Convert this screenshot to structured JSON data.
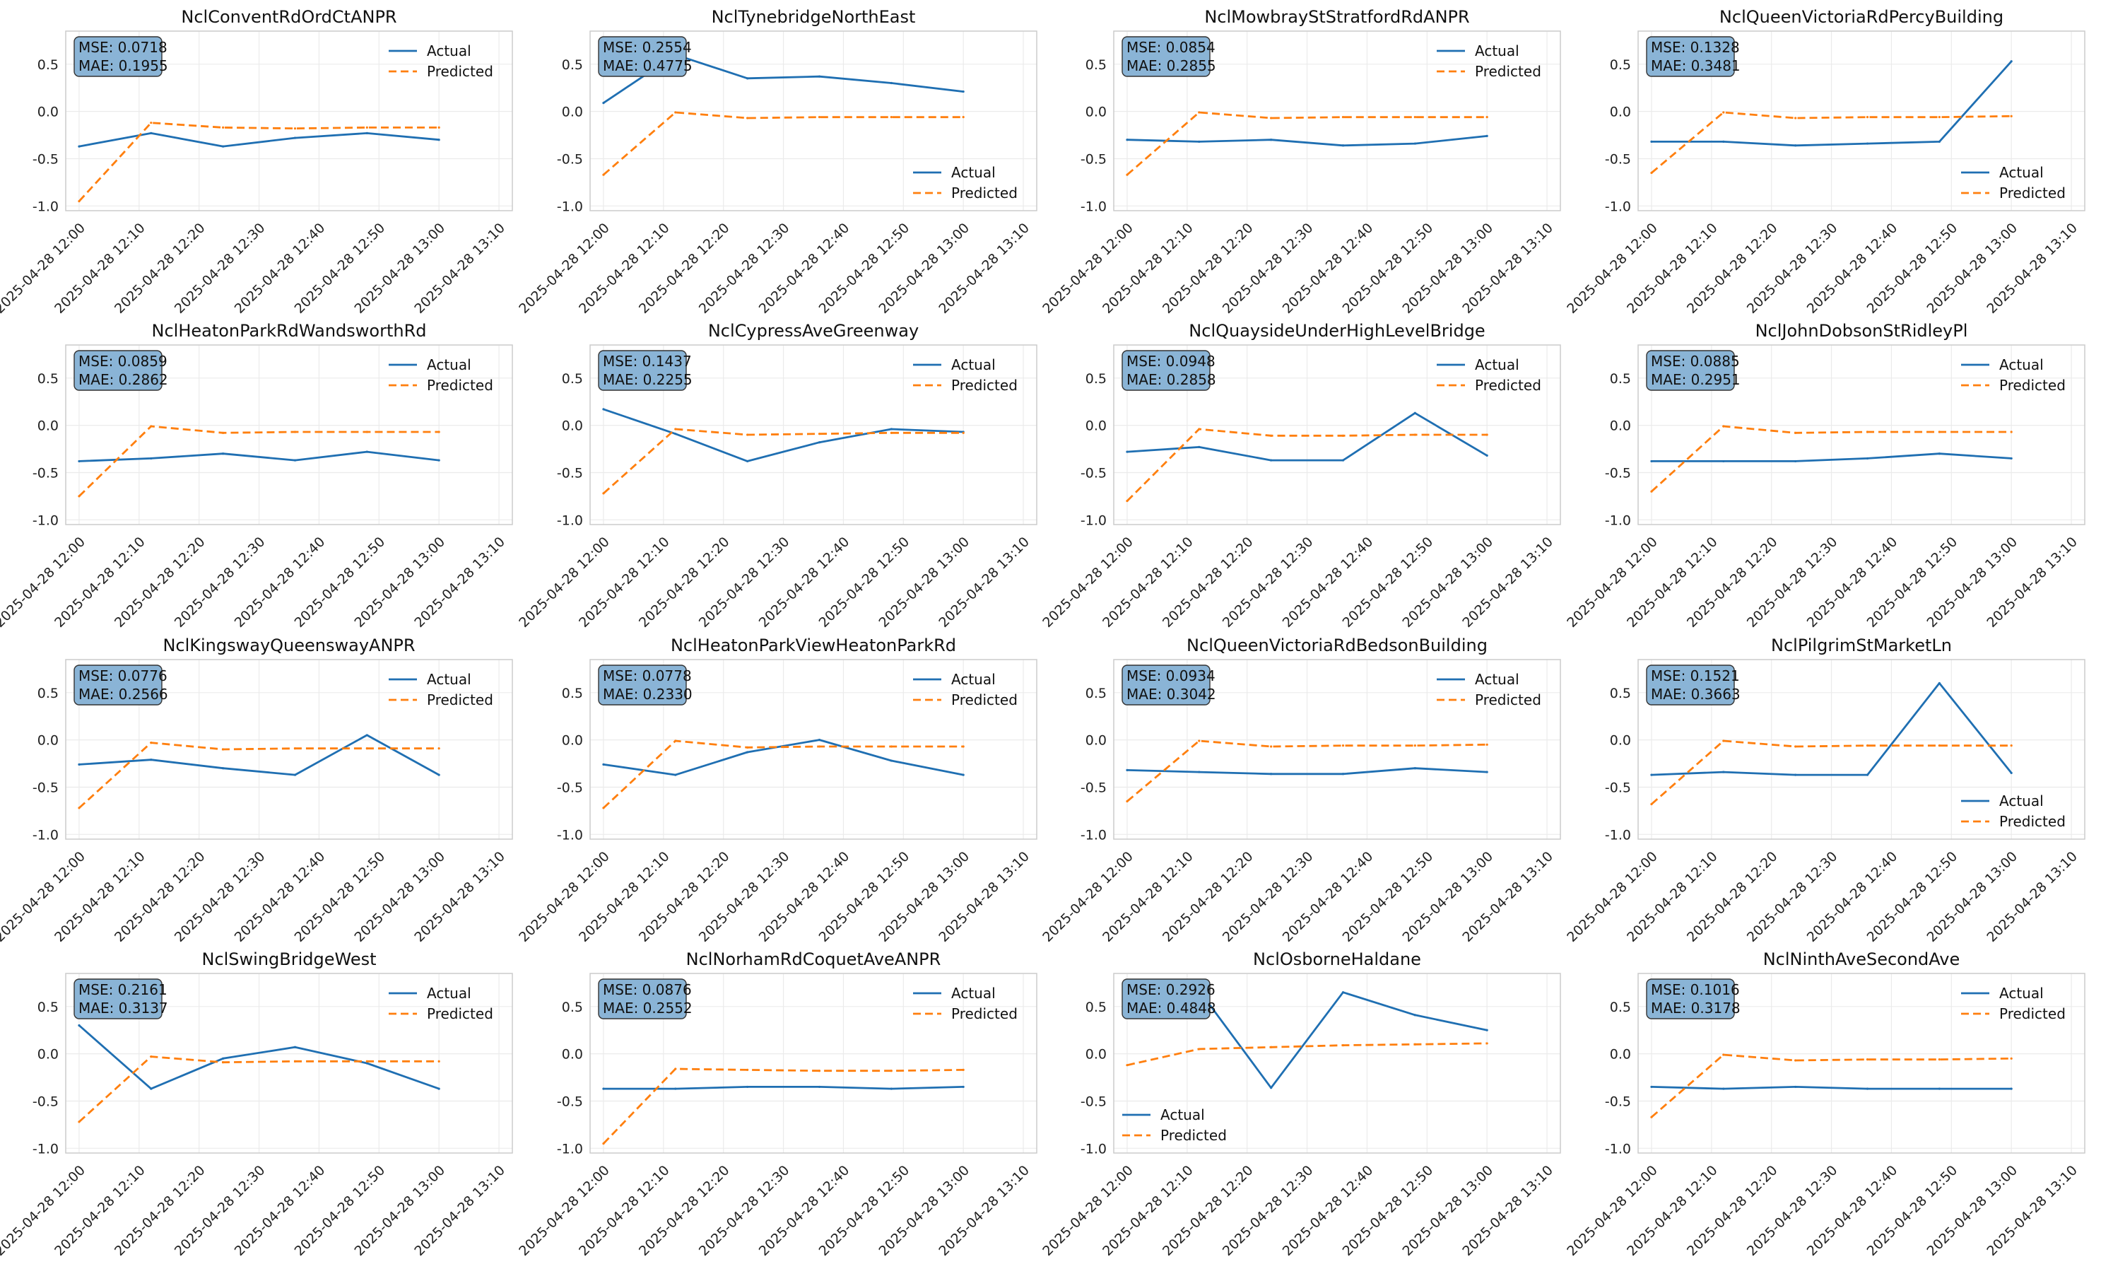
{
  "legend_labels": {
    "actual": "Actual",
    "predicted": "Predicted"
  },
  "colors": {
    "actual": "#1f6fb2",
    "predicted": "#ff7f0e",
    "metric_box": "#8ab4d6",
    "grid": "#ebebeb",
    "frame": "#cccccc"
  },
  "chart_data": [
    {
      "type": "line",
      "title": "NclConventRdOrdCtANPR",
      "mse": "MSE: 0.0718",
      "mae": "MAE: 0.1955",
      "legend": "top-right",
      "x": [
        "2025-04-28 12:00",
        "2025-04-28 12:10",
        "2025-04-28 12:20",
        "2025-04-28 12:30",
        "2025-04-28 12:40",
        "2025-04-28 12:50",
        "2025-04-28 13:00",
        "2025-04-28 13:10"
      ],
      "ylim": [
        -1.05,
        0.85
      ],
      "yticks": [
        "0.5",
        "0.0",
        "-0.5",
        "-1.0"
      ],
      "series": [
        {
          "name": "Actual",
          "x": [
            0,
            1.2,
            2.4,
            3.6,
            4.8,
            6.0
          ],
          "values": [
            -0.37,
            -0.23,
            -0.37,
            -0.28,
            -0.23,
            -0.3
          ]
        },
        {
          "name": "Predicted",
          "x": [
            0,
            1.2,
            2.4,
            3.6,
            4.8,
            6.0
          ],
          "values": [
            -0.95,
            -0.12,
            -0.17,
            -0.18,
            -0.17,
            -0.17
          ]
        }
      ]
    },
    {
      "type": "line",
      "title": "NclTynebridgeNorthEast",
      "mse": "MSE: 0.2554",
      "mae": "MAE: 0.4775",
      "legend": "bottom-right",
      "x": [
        "2025-04-28 12:00",
        "2025-04-28 12:10",
        "2025-04-28 12:20",
        "2025-04-28 12:30",
        "2025-04-28 12:40",
        "2025-04-28 12:50",
        "2025-04-28 13:00",
        "2025-04-28 13:10"
      ],
      "ylim": [
        -1.05,
        0.85
      ],
      "yticks": [
        "0.5",
        "0.0",
        "-0.5",
        "-1.0"
      ],
      "series": [
        {
          "name": "Actual",
          "x": [
            0,
            1.2,
            2.4,
            3.6,
            4.8,
            6.0
          ],
          "values": [
            0.09,
            0.6,
            0.35,
            0.37,
            0.3,
            0.21
          ]
        },
        {
          "name": "Predicted",
          "x": [
            0,
            1.2,
            2.4,
            3.6,
            4.8,
            6.0
          ],
          "values": [
            -0.67,
            -0.01,
            -0.07,
            -0.06,
            -0.06,
            -0.06
          ]
        }
      ]
    },
    {
      "type": "line",
      "title": "NclMowbrayStStratfordRdANPR",
      "mse": "MSE: 0.0854",
      "mae": "MAE: 0.2855",
      "legend": "top-right",
      "x": [
        "2025-04-28 12:00",
        "2025-04-28 12:10",
        "2025-04-28 12:20",
        "2025-04-28 12:30",
        "2025-04-28 12:40",
        "2025-04-28 12:50",
        "2025-04-28 13:00",
        "2025-04-28 13:10"
      ],
      "ylim": [
        -1.05,
        0.85
      ],
      "yticks": [
        "0.5",
        "0.0",
        "-0.5",
        "-1.0"
      ],
      "series": [
        {
          "name": "Actual",
          "x": [
            0,
            1.2,
            2.4,
            3.6,
            4.8,
            6.0
          ],
          "values": [
            -0.3,
            -0.32,
            -0.3,
            -0.36,
            -0.34,
            -0.26
          ]
        },
        {
          "name": "Predicted",
          "x": [
            0,
            1.2,
            2.4,
            3.6,
            4.8,
            6.0
          ],
          "values": [
            -0.67,
            -0.01,
            -0.07,
            -0.06,
            -0.06,
            -0.06
          ]
        }
      ]
    },
    {
      "type": "line",
      "title": "NclQueenVictoriaRdPercyBuilding",
      "mse": "MSE: 0.1328",
      "mae": "MAE: 0.3481",
      "legend": "bottom-right",
      "x": [
        "2025-04-28 12:00",
        "2025-04-28 12:10",
        "2025-04-28 12:20",
        "2025-04-28 12:30",
        "2025-04-28 12:40",
        "2025-04-28 12:50",
        "2025-04-28 13:00",
        "2025-04-28 13:10"
      ],
      "ylim": [
        -1.05,
        0.85
      ],
      "yticks": [
        "0.5",
        "0.0",
        "-0.5",
        "-1.0"
      ],
      "series": [
        {
          "name": "Actual",
          "x": [
            0,
            1.2,
            2.4,
            3.6,
            4.8,
            6.0
          ],
          "values": [
            -0.32,
            -0.32,
            -0.36,
            -0.34,
            -0.32,
            0.53
          ]
        },
        {
          "name": "Predicted",
          "x": [
            0,
            1.2,
            2.4,
            3.6,
            4.8,
            6.0
          ],
          "values": [
            -0.65,
            -0.01,
            -0.07,
            -0.06,
            -0.06,
            -0.05
          ]
        }
      ]
    },
    {
      "type": "line",
      "title": "NclHeatonParkRdWandsworthRd",
      "mse": "MSE: 0.0859",
      "mae": "MAE: 0.2862",
      "legend": "top-right",
      "x": [
        "2025-04-28 12:00",
        "2025-04-28 12:10",
        "2025-04-28 12:20",
        "2025-04-28 12:30",
        "2025-04-28 12:40",
        "2025-04-28 12:50",
        "2025-04-28 13:00",
        "2025-04-28 13:10"
      ],
      "ylim": [
        -1.05,
        0.85
      ],
      "yticks": [
        "0.5",
        "0.0",
        "-0.5",
        "-1.0"
      ],
      "series": [
        {
          "name": "Actual",
          "x": [
            0,
            1.2,
            2.4,
            3.6,
            4.8,
            6.0
          ],
          "values": [
            -0.38,
            -0.35,
            -0.3,
            -0.37,
            -0.28,
            -0.37
          ]
        },
        {
          "name": "Predicted",
          "x": [
            0,
            1.2,
            2.4,
            3.6,
            4.8,
            6.0
          ],
          "values": [
            -0.75,
            -0.01,
            -0.08,
            -0.07,
            -0.07,
            -0.07
          ]
        }
      ]
    },
    {
      "type": "line",
      "title": "NclCypressAveGreenway",
      "mse": "MSE: 0.1437",
      "mae": "MAE: 0.2255",
      "legend": "top-right",
      "x": [
        "2025-04-28 12:00",
        "2025-04-28 12:10",
        "2025-04-28 12:20",
        "2025-04-28 12:30",
        "2025-04-28 12:40",
        "2025-04-28 12:50",
        "2025-04-28 13:00",
        "2025-04-28 13:10"
      ],
      "ylim": [
        -1.05,
        0.85
      ],
      "yticks": [
        "0.5",
        "0.0",
        "-0.5",
        "-1.0"
      ],
      "series": [
        {
          "name": "Actual",
          "x": [
            0,
            1.2,
            2.4,
            3.6,
            4.8,
            6.0
          ],
          "values": [
            0.17,
            -0.09,
            -0.38,
            -0.18,
            -0.04,
            -0.07
          ]
        },
        {
          "name": "Predicted",
          "x": [
            0,
            1.2,
            2.4,
            3.6,
            4.8,
            6.0
          ],
          "values": [
            -0.72,
            -0.04,
            -0.1,
            -0.09,
            -0.08,
            -0.08
          ]
        }
      ]
    },
    {
      "type": "line",
      "title": "NclQuaysideUnderHighLevelBridge",
      "mse": "MSE: 0.0948",
      "mae": "MAE: 0.2858",
      "legend": "top-right",
      "x": [
        "2025-04-28 12:00",
        "2025-04-28 12:10",
        "2025-04-28 12:20",
        "2025-04-28 12:30",
        "2025-04-28 12:40",
        "2025-04-28 12:50",
        "2025-04-28 13:00",
        "2025-04-28 13:10"
      ],
      "ylim": [
        -1.05,
        0.85
      ],
      "yticks": [
        "0.5",
        "0.0",
        "-0.5",
        "-1.0"
      ],
      "series": [
        {
          "name": "Actual",
          "x": [
            0,
            1.2,
            2.4,
            3.6,
            4.8,
            6.0
          ],
          "values": [
            -0.28,
            -0.23,
            -0.37,
            -0.37,
            0.13,
            -0.32
          ]
        },
        {
          "name": "Predicted",
          "x": [
            0,
            1.2,
            2.4,
            3.6,
            4.8,
            6.0
          ],
          "values": [
            -0.8,
            -0.04,
            -0.11,
            -0.11,
            -0.1,
            -0.1
          ]
        }
      ]
    },
    {
      "type": "line",
      "title": "NclJohnDobsonStRidleyPl",
      "mse": "MSE: 0.0885",
      "mae": "MAE: 0.2951",
      "legend": "top-right",
      "x": [
        "2025-04-28 12:00",
        "2025-04-28 12:10",
        "2025-04-28 12:20",
        "2025-04-28 12:30",
        "2025-04-28 12:40",
        "2025-04-28 12:50",
        "2025-04-28 13:00",
        "2025-04-28 13:10"
      ],
      "ylim": [
        -1.05,
        0.85
      ],
      "yticks": [
        "0.5",
        "0.0",
        "-0.5",
        "-1.0"
      ],
      "series": [
        {
          "name": "Actual",
          "x": [
            0,
            1.2,
            2.4,
            3.6,
            4.8,
            6.0
          ],
          "values": [
            -0.38,
            -0.38,
            -0.38,
            -0.35,
            -0.3,
            -0.35
          ]
        },
        {
          "name": "Predicted",
          "x": [
            0,
            1.2,
            2.4,
            3.6,
            4.8,
            6.0
          ],
          "values": [
            -0.7,
            -0.01,
            -0.08,
            -0.07,
            -0.07,
            -0.07
          ]
        }
      ]
    },
    {
      "type": "line",
      "title": "NclKingswayQueenswayANPR",
      "mse": "MSE: 0.0776",
      "mae": "MAE: 0.2566",
      "legend": "top-right",
      "x": [
        "2025-04-28 12:00",
        "2025-04-28 12:10",
        "2025-04-28 12:20",
        "2025-04-28 12:30",
        "2025-04-28 12:40",
        "2025-04-28 12:50",
        "2025-04-28 13:00",
        "2025-04-28 13:10"
      ],
      "ylim": [
        -1.05,
        0.85
      ],
      "yticks": [
        "0.5",
        "0.0",
        "-0.5",
        "-1.0"
      ],
      "series": [
        {
          "name": "Actual",
          "x": [
            0,
            1.2,
            2.4,
            3.6,
            4.8,
            6.0
          ],
          "values": [
            -0.26,
            -0.21,
            -0.3,
            -0.37,
            0.05,
            -0.37
          ]
        },
        {
          "name": "Predicted",
          "x": [
            0,
            1.2,
            2.4,
            3.6,
            4.8,
            6.0
          ],
          "values": [
            -0.72,
            -0.03,
            -0.1,
            -0.09,
            -0.09,
            -0.09
          ]
        }
      ]
    },
    {
      "type": "line",
      "title": "NclHeatonParkViewHeatonParkRd",
      "mse": "MSE: 0.0778",
      "mae": "MAE: 0.2330",
      "legend": "top-right",
      "x": [
        "2025-04-28 12:00",
        "2025-04-28 12:10",
        "2025-04-28 12:20",
        "2025-04-28 12:30",
        "2025-04-28 12:40",
        "2025-04-28 12:50",
        "2025-04-28 13:00",
        "2025-04-28 13:10"
      ],
      "ylim": [
        -1.05,
        0.85
      ],
      "yticks": [
        "0.5",
        "0.0",
        "-0.5",
        "-1.0"
      ],
      "series": [
        {
          "name": "Actual",
          "x": [
            0,
            1.2,
            2.4,
            3.6,
            4.8,
            6.0
          ],
          "values": [
            -0.26,
            -0.37,
            -0.13,
            0.0,
            -0.22,
            -0.37
          ]
        },
        {
          "name": "Predicted",
          "x": [
            0,
            1.2,
            2.4,
            3.6,
            4.8,
            6.0
          ],
          "values": [
            -0.72,
            -0.01,
            -0.08,
            -0.07,
            -0.07,
            -0.07
          ]
        }
      ]
    },
    {
      "type": "line",
      "title": "NclQueenVictoriaRdBedsonBuilding",
      "mse": "MSE: 0.0934",
      "mae": "MAE: 0.3042",
      "legend": "top-right",
      "x": [
        "2025-04-28 12:00",
        "2025-04-28 12:10",
        "2025-04-28 12:20",
        "2025-04-28 12:30",
        "2025-04-28 12:40",
        "2025-04-28 12:50",
        "2025-04-28 13:00",
        "2025-04-28 13:10"
      ],
      "ylim": [
        -1.05,
        0.85
      ],
      "yticks": [
        "0.5",
        "0.0",
        "-0.5",
        "-1.0"
      ],
      "series": [
        {
          "name": "Actual",
          "x": [
            0,
            1.2,
            2.4,
            3.6,
            4.8,
            6.0
          ],
          "values": [
            -0.32,
            -0.34,
            -0.36,
            -0.36,
            -0.3,
            -0.34
          ]
        },
        {
          "name": "Predicted",
          "x": [
            0,
            1.2,
            2.4,
            3.6,
            4.8,
            6.0
          ],
          "values": [
            -0.65,
            -0.01,
            -0.07,
            -0.06,
            -0.06,
            -0.05
          ]
        }
      ]
    },
    {
      "type": "line",
      "title": "NclPilgrimStMarketLn",
      "mse": "MSE: 0.1521",
      "mae": "MAE: 0.3663",
      "legend": "bottom-right",
      "x": [
        "2025-04-28 12:00",
        "2025-04-28 12:10",
        "2025-04-28 12:20",
        "2025-04-28 12:30",
        "2025-04-28 12:40",
        "2025-04-28 12:50",
        "2025-04-28 13:00",
        "2025-04-28 13:10"
      ],
      "ylim": [
        -1.05,
        0.85
      ],
      "yticks": [
        "0.5",
        "0.0",
        "-0.5",
        "-1.0"
      ],
      "series": [
        {
          "name": "Actual",
          "x": [
            0,
            1.2,
            2.4,
            3.6,
            4.8,
            6.0
          ],
          "values": [
            -0.37,
            -0.34,
            -0.37,
            -0.37,
            0.6,
            -0.35
          ]
        },
        {
          "name": "Predicted",
          "x": [
            0,
            1.2,
            2.4,
            3.6,
            4.8,
            6.0
          ],
          "values": [
            -0.68,
            -0.01,
            -0.07,
            -0.06,
            -0.06,
            -0.06
          ]
        }
      ]
    },
    {
      "type": "line",
      "title": "NclSwingBridgeWest",
      "mse": "MSE: 0.2161",
      "mae": "MAE: 0.3137",
      "legend": "top-right",
      "x": [
        "2025-04-28 12:00",
        "2025-04-28 12:10",
        "2025-04-28 12:20",
        "2025-04-28 12:30",
        "2025-04-28 12:40",
        "2025-04-28 12:50",
        "2025-04-28 13:00",
        "2025-04-28 13:10"
      ],
      "ylim": [
        -1.05,
        0.85
      ],
      "yticks": [
        "0.5",
        "0.0",
        "-0.5",
        "-1.0"
      ],
      "series": [
        {
          "name": "Actual",
          "x": [
            0,
            1.2,
            2.4,
            3.6,
            4.8,
            6.0
          ],
          "values": [
            0.3,
            -0.37,
            -0.05,
            0.07,
            -0.1,
            -0.37
          ]
        },
        {
          "name": "Predicted",
          "x": [
            0,
            1.2,
            2.4,
            3.6,
            4.8,
            6.0
          ],
          "values": [
            -0.72,
            -0.03,
            -0.09,
            -0.08,
            -0.08,
            -0.08
          ]
        }
      ]
    },
    {
      "type": "line",
      "title": "NclNorhamRdCoquetAveANPR",
      "mse": "MSE: 0.0876",
      "mae": "MAE: 0.2552",
      "legend": "top-right",
      "x": [
        "2025-04-28 12:00",
        "2025-04-28 12:10",
        "2025-04-28 12:20",
        "2025-04-28 12:30",
        "2025-04-28 12:40",
        "2025-04-28 12:50",
        "2025-04-28 13:00",
        "2025-04-28 13:10"
      ],
      "ylim": [
        -1.05,
        0.85
      ],
      "yticks": [
        "0.5",
        "0.0",
        "-0.5",
        "-1.0"
      ],
      "series": [
        {
          "name": "Actual",
          "x": [
            0,
            1.2,
            2.4,
            3.6,
            4.8,
            6.0
          ],
          "values": [
            -0.37,
            -0.37,
            -0.35,
            -0.35,
            -0.37,
            -0.35
          ]
        },
        {
          "name": "Predicted",
          "x": [
            0,
            1.2,
            2.4,
            3.6,
            4.8,
            6.0
          ],
          "values": [
            -0.95,
            -0.16,
            -0.17,
            -0.18,
            -0.18,
            -0.17
          ]
        }
      ]
    },
    {
      "type": "line",
      "title": "NclOsborneHaldane",
      "mse": "MSE: 0.2926",
      "mae": "MAE: 0.4848",
      "legend": "bottom-left",
      "x": [
        "2025-04-28 12:00",
        "2025-04-28 12:10",
        "2025-04-28 12:20",
        "2025-04-28 12:30",
        "2025-04-28 12:40",
        "2025-04-28 12:50",
        "2025-04-28 13:00",
        "2025-04-28 13:10"
      ],
      "ylim": [
        -1.05,
        0.85
      ],
      "yticks": [
        "0.5",
        "0.0",
        "-0.5",
        "-1.0"
      ],
      "series": [
        {
          "name": "Actual",
          "x": [
            0,
            1.2,
            2.4,
            3.6,
            4.8,
            6.0
          ],
          "values": [
            0.78,
            0.67,
            -0.36,
            0.65,
            0.41,
            0.25
          ]
        },
        {
          "name": "Predicted",
          "x": [
            0,
            1.2,
            2.4,
            3.6,
            4.8,
            6.0
          ],
          "values": [
            -0.12,
            0.05,
            0.07,
            0.09,
            0.1,
            0.11
          ]
        }
      ]
    },
    {
      "type": "line",
      "title": "NclNinthAveSecondAve",
      "mse": "MSE: 0.1016",
      "mae": "MAE: 0.3178",
      "legend": "top-right",
      "x": [
        "2025-04-28 12:00",
        "2025-04-28 12:10",
        "2025-04-28 12:20",
        "2025-04-28 12:30",
        "2025-04-28 12:40",
        "2025-04-28 12:50",
        "2025-04-28 13:00",
        "2025-04-28 13:10"
      ],
      "ylim": [
        -1.05,
        0.85
      ],
      "yticks": [
        "0.5",
        "0.0",
        "-0.5",
        "-1.0"
      ],
      "series": [
        {
          "name": "Actual",
          "x": [
            0,
            1.2,
            2.4,
            3.6,
            4.8,
            6.0
          ],
          "values": [
            -0.35,
            -0.37,
            -0.35,
            -0.37,
            -0.37,
            -0.37
          ]
        },
        {
          "name": "Predicted",
          "x": [
            0,
            1.2,
            2.4,
            3.6,
            4.8,
            6.0
          ],
          "values": [
            -0.67,
            -0.01,
            -0.07,
            -0.06,
            -0.06,
            -0.05
          ]
        }
      ]
    }
  ]
}
